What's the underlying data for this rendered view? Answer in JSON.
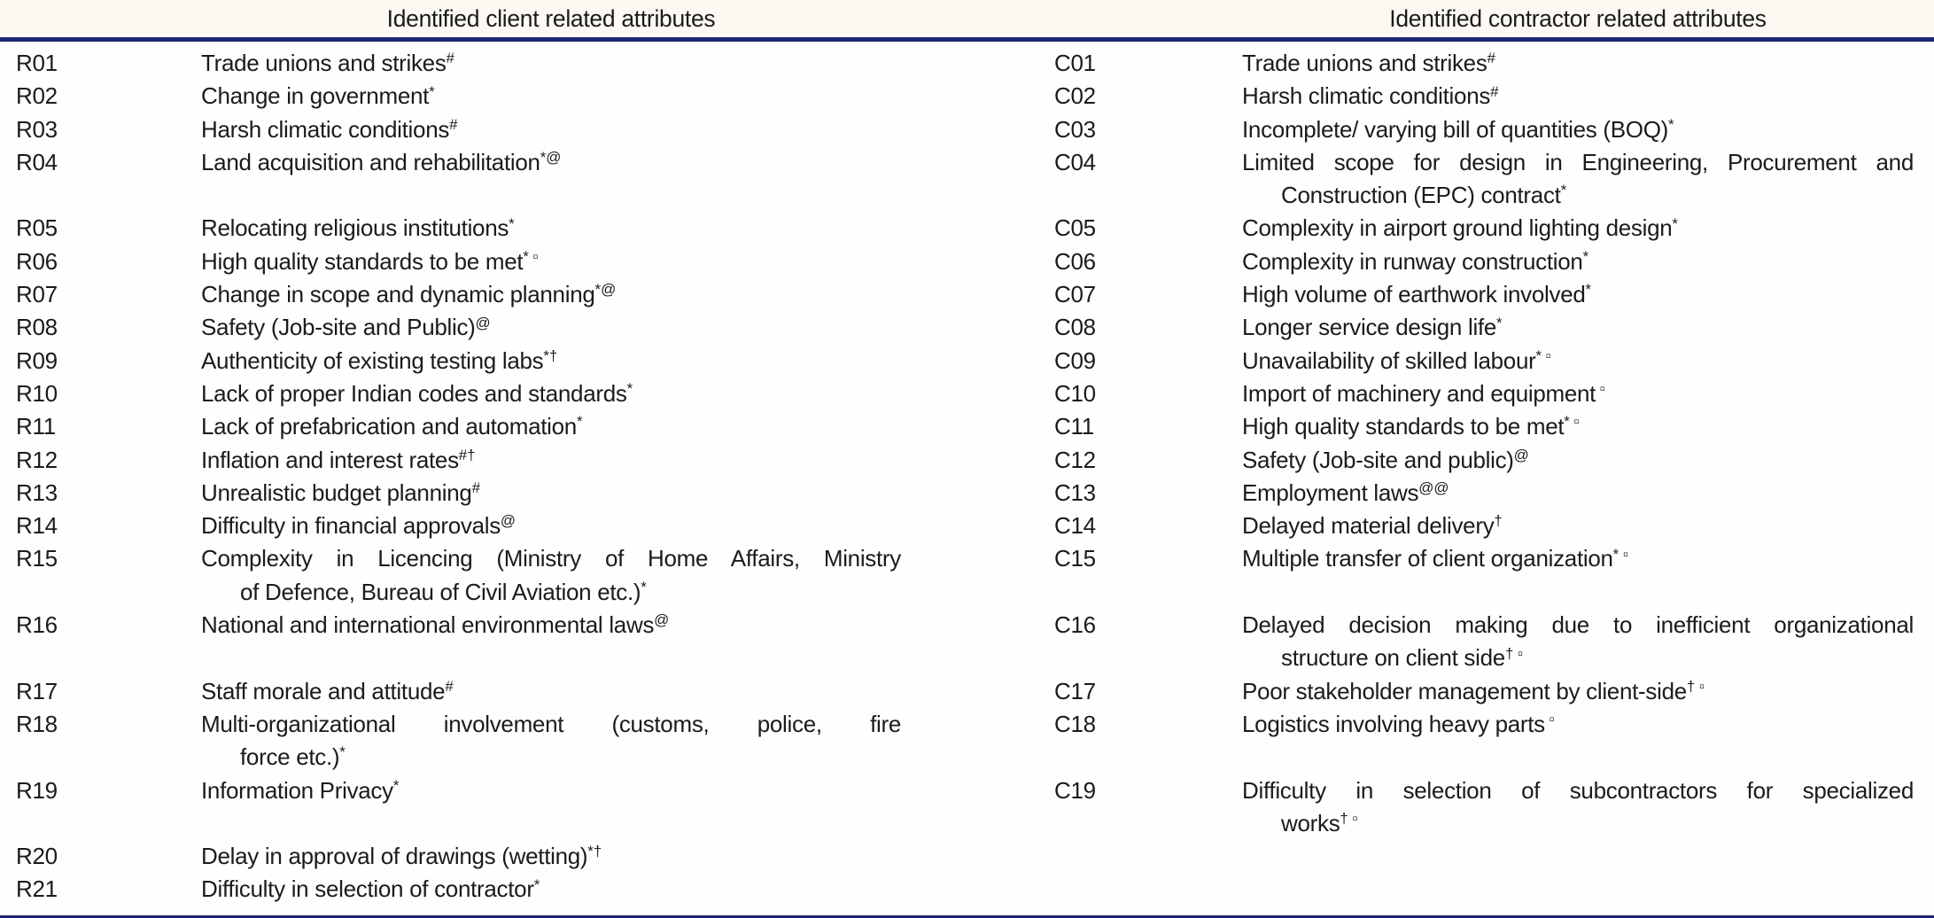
{
  "headers": {
    "client": "Identified client related attributes",
    "contractor": "Identified contractor related attributes"
  },
  "colors": {
    "rule_navy": "#1e2572",
    "text_ink": "#1b1b1b",
    "header_band": "#fbf9f1"
  },
  "rows": [
    {
      "client": {
        "code": "R01",
        "lines": [
          "Trade unions and strikes"
        ],
        "sup": "#"
      },
      "contractor": {
        "code": "C01",
        "lines": [
          "Trade unions and strikes"
        ],
        "sup": "#"
      }
    },
    {
      "client": {
        "code": "R02",
        "lines": [
          "Change in government"
        ],
        "sup": "*"
      },
      "contractor": {
        "code": "C02",
        "lines": [
          "Harsh climatic conditions"
        ],
        "sup": "#"
      }
    },
    {
      "client": {
        "code": "R03",
        "lines": [
          "Harsh climatic conditions"
        ],
        "sup": "#"
      },
      "contractor": {
        "code": "C03",
        "lines": [
          "Incomplete/ varying bill of quantities (BOQ)"
        ],
        "sup": "*"
      }
    },
    {
      "client": {
        "code": "R04",
        "lines": [
          "Land acquisition and rehabilitation"
        ],
        "sup": "*@"
      },
      "contractor": {
        "code": "C04",
        "lines": [
          "Limited scope for design in Engineering, Procurement and",
          "Construction (EPC) contract"
        ],
        "sup": "*"
      }
    },
    {
      "client": {
        "code": "R05",
        "lines": [
          "Relocating religious institutions"
        ],
        "sup": "*"
      },
      "contractor": {
        "code": "C05",
        "lines": [
          "Complexity in airport ground lighting design"
        ],
        "sup": "*"
      }
    },
    {
      "client": {
        "code": "R06",
        "lines": [
          "High quality standards to be met"
        ],
        "sup": "* ▫"
      },
      "contractor": {
        "code": "C06",
        "lines": [
          "Complexity in runway construction"
        ],
        "sup": "*"
      }
    },
    {
      "client": {
        "code": "R07",
        "lines": [
          "Change in scope and dynamic planning"
        ],
        "sup": "*@"
      },
      "contractor": {
        "code": "C07",
        "lines": [
          "High volume of earthwork involved"
        ],
        "sup": "*"
      }
    },
    {
      "client": {
        "code": "R08",
        "lines": [
          "Safety (Job-site and Public)"
        ],
        "sup": "@"
      },
      "contractor": {
        "code": "C08",
        "lines": [
          "Longer service design life"
        ],
        "sup": "*"
      }
    },
    {
      "client": {
        "code": "R09",
        "lines": [
          "Authenticity of existing testing labs"
        ],
        "sup": "*†"
      },
      "contractor": {
        "code": "C09",
        "lines": [
          "Unavailability of skilled labour"
        ],
        "sup": "* ▫"
      }
    },
    {
      "client": {
        "code": "R10",
        "lines": [
          "Lack of proper Indian codes and standards"
        ],
        "sup": "*"
      },
      "contractor": {
        "code": "C10",
        "lines": [
          "Import of machinery and equipment"
        ],
        "sup": " ▫"
      }
    },
    {
      "client": {
        "code": "R11",
        "lines": [
          "Lack of prefabrication and automation"
        ],
        "sup": "*"
      },
      "contractor": {
        "code": "C11",
        "lines": [
          "High quality standards to be met"
        ],
        "sup": "* ▫"
      }
    },
    {
      "client": {
        "code": "R12",
        "lines": [
          "Inflation and interest rates"
        ],
        "sup": "#†"
      },
      "contractor": {
        "code": "C12",
        "lines": [
          "Safety (Job-site and public)"
        ],
        "sup": "@"
      }
    },
    {
      "client": {
        "code": "R13",
        "lines": [
          "Unrealistic budget planning"
        ],
        "sup": "#"
      },
      "contractor": {
        "code": "C13",
        "lines": [
          "Employment laws"
        ],
        "sup": "@@"
      }
    },
    {
      "client": {
        "code": "R14",
        "lines": [
          "Difficulty in financial approvals"
        ],
        "sup": "@"
      },
      "contractor": {
        "code": "C14",
        "lines": [
          "Delayed material delivery"
        ],
        "sup": "†"
      }
    },
    {
      "client": {
        "code": "R15",
        "lines": [
          "Complexity in Licencing (Ministry of Home Affairs, Ministry",
          "of Defence, Bureau of Civil Aviation etc.)"
        ],
        "sup": "*"
      },
      "contractor": {
        "code": "C15",
        "lines": [
          "Multiple transfer of client organization"
        ],
        "sup": "* ▫"
      }
    },
    {
      "client": {
        "code": "R16",
        "lines": [
          "National and international environmental laws"
        ],
        "sup": "@"
      },
      "contractor": {
        "code": "C16",
        "lines": [
          "Delayed decision making due to inefficient organizational",
          "structure on client side"
        ],
        "sup": "† ▫"
      }
    },
    {
      "client": {
        "code": "R17",
        "lines": [
          "Staff morale and attitude"
        ],
        "sup": "#"
      },
      "contractor": {
        "code": "C17",
        "lines": [
          "Poor stakeholder management by client-side"
        ],
        "sup": "† ▫"
      }
    },
    {
      "client": {
        "code": "R18",
        "lines": [
          "Multi-organizational involvement (customs, police, fire",
          "force etc.)"
        ],
        "sup": "*"
      },
      "contractor": {
        "code": "C18",
        "lines": [
          "Logistics involving heavy parts"
        ],
        "sup": " ▫"
      }
    },
    {
      "client": {
        "code": "R19",
        "lines": [
          "Information Privacy"
        ],
        "sup": "*"
      },
      "contractor": {
        "code": "C19",
        "lines": [
          "Difficulty in selection of subcontractors for specialized",
          "works"
        ],
        "sup": "† ▫"
      }
    },
    {
      "client": {
        "code": "R20",
        "lines": [
          "Delay in approval of drawings (wetting)"
        ],
        "sup": "*†"
      },
      "contractor": null
    },
    {
      "client": {
        "code": "R21",
        "lines": [
          "Difficulty in selection of contractor"
        ],
        "sup": "*"
      },
      "contractor": null
    }
  ]
}
